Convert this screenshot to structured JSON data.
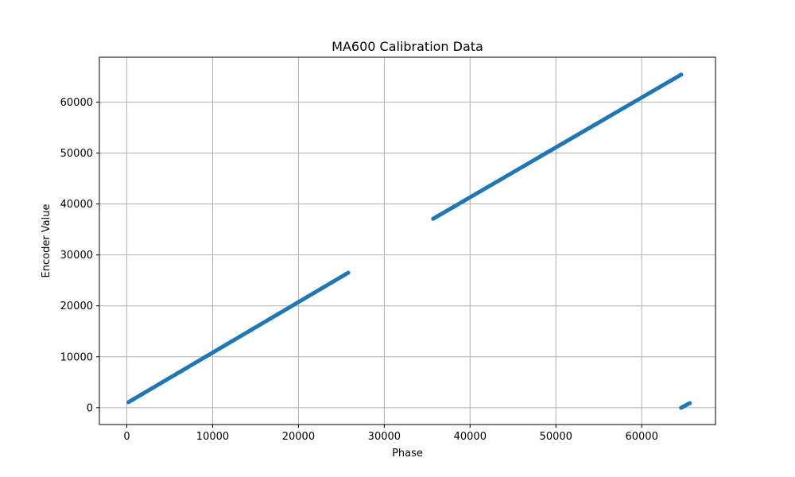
{
  "chart_data": {
    "type": "scatter",
    "title": "MA600 Calibration Data",
    "xlabel": "Phase",
    "ylabel": "Encoder Value",
    "xlim": [
      -3200,
      68600
    ],
    "ylim": [
      -3300,
      68800
    ],
    "xticks": [
      0,
      10000,
      20000,
      30000,
      40000,
      50000,
      60000
    ],
    "yticks": [
      0,
      10000,
      20000,
      30000,
      40000,
      50000,
      60000
    ],
    "grid": true,
    "marker_color": "#1f77b4",
    "series": [
      {
        "segments": [
          {
            "x_start": 200,
            "x_end": 25800,
            "y_start": 1100,
            "y_end": 26500
          },
          {
            "x_start": 35700,
            "x_end": 64600,
            "y_start": 37100,
            "y_end": 65400
          },
          {
            "x_start": 64600,
            "x_end": 65600,
            "y_start": 0,
            "y_end": 900
          }
        ]
      }
    ]
  }
}
